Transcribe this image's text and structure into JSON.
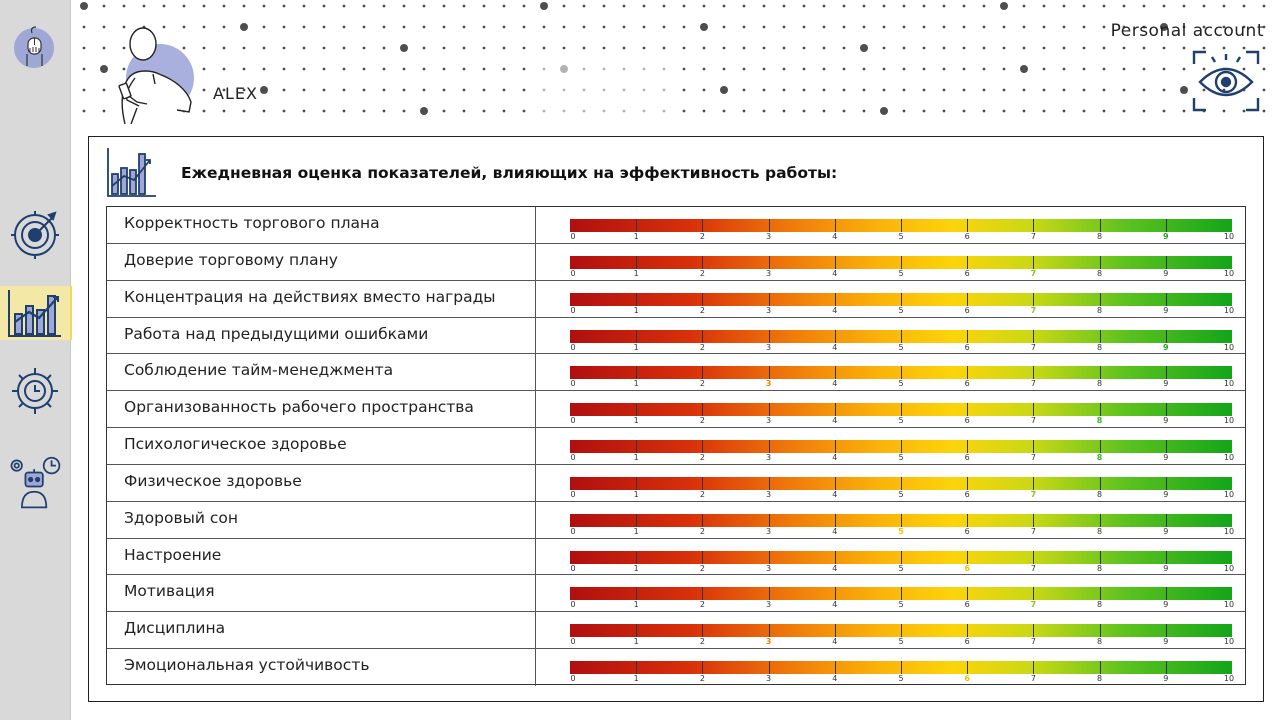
{
  "header": {
    "user_name": "ALEX",
    "account_label": "Personal account"
  },
  "sidebar": {
    "items": [
      {
        "icon": "hand-cursor-icon",
        "active": false
      },
      {
        "icon": "target-icon",
        "active": false
      },
      {
        "icon": "growth-chart-icon",
        "active": true
      },
      {
        "icon": "time-management-icon",
        "active": false
      },
      {
        "icon": "robot-settings-icon",
        "active": false
      }
    ]
  },
  "main": {
    "title": "Ежедневная оценка показателей, влияющих на эффективность работы:",
    "scale_labels": [
      "0",
      "1",
      "2",
      "3",
      "4",
      "5",
      "6",
      "7",
      "8",
      "9",
      "10"
    ],
    "rows": [
      {
        "label": "Корректность торгового плана",
        "score": 9
      },
      {
        "label": "Доверие торговому плану",
        "score": 7
      },
      {
        "label": "Концентрация на действиях вместо награды",
        "score": 7
      },
      {
        "label": "Работа над предыдущими ошибками",
        "score": 9
      },
      {
        "label": "Соблюдение тайм-менеджмента",
        "score": 3
      },
      {
        "label": "Организованность рабочего пространства",
        "score": 8
      },
      {
        "label": "Психологическое здоровье",
        "score": 8
      },
      {
        "label": "Физическое здоровье",
        "score": 7
      },
      {
        "label": "Здоровый сон",
        "score": 5
      },
      {
        "label": "Настроение",
        "score": 6
      },
      {
        "label": "Мотивация",
        "score": 7
      },
      {
        "label": "Дисциплина",
        "score": 3
      },
      {
        "label": "Эмоциональная устойчивость",
        "score": 6
      }
    ]
  },
  "colors": {
    "icon_navy": "#1f3f6e",
    "sidebar_bg": "#d9d9d9",
    "active_tab": "#f3e8a6",
    "score_3": "#f07d0a",
    "score_5": "#f5c400",
    "score_6": "#e8c300",
    "score_7": "#8dc21e",
    "score_8": "#3fb52a",
    "score_9": "#23a51a"
  }
}
